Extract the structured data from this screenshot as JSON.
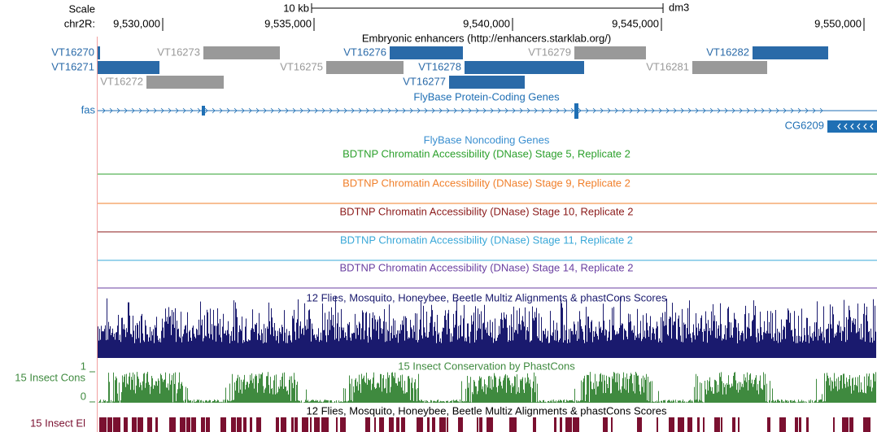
{
  "header": {
    "scale_label": "Scale",
    "chr_label": "chr2R:",
    "scale_bar_label": "10 kb",
    "assembly": "dm3",
    "positions": [
      "9,530,000",
      "9,535,000",
      "9,540,000",
      "9,545,000",
      "9,550,000"
    ]
  },
  "tracks": {
    "enhancers": {
      "title": "Embryonic enhancers (http://enhancers.starklab.org/)",
      "items": [
        {
          "name": "VT16270",
          "color": "#2a6aa8"
        },
        {
          "name": "VT16273",
          "color": "#999999"
        },
        {
          "name": "VT16276",
          "color": "#2a6aa8"
        },
        {
          "name": "VT16279",
          "color": "#999999"
        },
        {
          "name": "VT16282",
          "color": "#2a6aa8"
        },
        {
          "name": "VT16271",
          "color": "#2a6aa8"
        },
        {
          "name": "VT16275",
          "color": "#999999"
        },
        {
          "name": "VT16278",
          "color": "#2a6aa8"
        },
        {
          "name": "VT16281",
          "color": "#999999"
        },
        {
          "name": "VT16272",
          "color": "#999999"
        },
        {
          "name": "VT16277",
          "color": "#2a6aa8"
        }
      ]
    },
    "protein_coding": {
      "title": "FlyBase Protein-Coding Genes",
      "genes": [
        "fas",
        "CG6209"
      ],
      "color": "#1f6fb4"
    },
    "noncoding": {
      "title": "FlyBase Noncoding Genes",
      "color": "#3a8fd0"
    },
    "dnase": [
      {
        "title": "BDTNP Chromatin Accessibility (DNase) Stage 5, Replicate 2",
        "color": "#2ca02c"
      },
      {
        "title": "BDTNP Chromatin Accessibility (DNase) Stage 9, Replicate 2",
        "color": "#f07f2a"
      },
      {
        "title": "BDTNP Chromatin Accessibility (DNase) Stage 10, Replicate 2",
        "color": "#8b1a1a"
      },
      {
        "title": "BDTNP Chromatin Accessibility (DNase) Stage 11, Replicate 2",
        "color": "#3aa8d8"
      },
      {
        "title": "BDTNP Chromatin Accessibility (DNase) Stage 14, Replicate 2",
        "color": "#6a3fa0"
      }
    ],
    "multiz": {
      "title": "12 Flies, Mosquito, Honeybee, Beetle Multiz Alignments & phastCons Scores",
      "color": "#1a1a6e"
    },
    "phastcons": {
      "title": "15 Insect Conservation by PhastCons",
      "label": "15 Insect Cons",
      "ymax": "1",
      "ymin": "0",
      "color": "#3f8a3f"
    },
    "elements": {
      "title": "12 Flies, Mosquito, Honeybee, Beetle Multiz Alignments & phastCons Scores",
      "label": "15 Insect El",
      "color": "#7a1030"
    }
  }
}
